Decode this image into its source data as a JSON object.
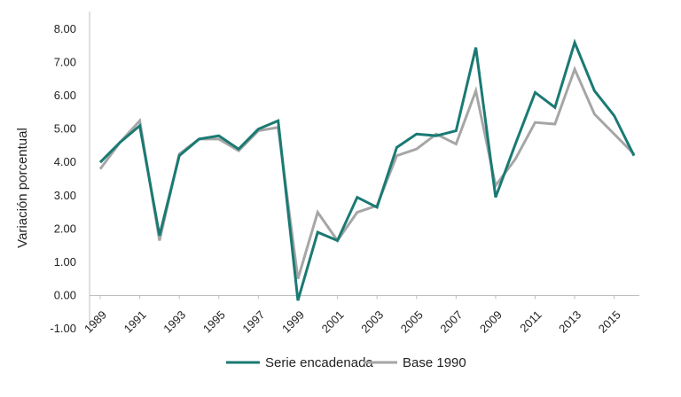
{
  "chart_data": {
    "type": "line",
    "ylabel": "Variación porcentual",
    "xlabel": "",
    "ylim": [
      -1.0,
      8.0
    ],
    "yticks": [
      "-1.00",
      "0.00",
      "1.00",
      "2.00",
      "3.00",
      "4.00",
      "5.00",
      "6.00",
      "7.00",
      "8.00"
    ],
    "xlim": [
      1989,
      2016
    ],
    "xticks": [
      "1989",
      "1991",
      "1993",
      "1995",
      "1997",
      "1999",
      "2001",
      "2003",
      "2005",
      "2007",
      "2009",
      "2011",
      "2013",
      "2015"
    ],
    "grid": false,
    "legend_position": "bottom",
    "x": [
      1989,
      1990,
      1991,
      1992,
      1993,
      1994,
      1995,
      1996,
      1997,
      1998,
      1999,
      2000,
      2001,
      2002,
      2003,
      2004,
      2005,
      2006,
      2007,
      2008,
      2009,
      2010,
      2011,
      2012,
      2013,
      2014,
      2015,
      2016
    ],
    "series": [
      {
        "name": "Serie encadenada",
        "color": "#1a7a73",
        "values": [
          4.0,
          4.6,
          5.1,
          1.8,
          4.2,
          4.7,
          4.8,
          4.4,
          5.0,
          5.25,
          -0.15,
          1.9,
          1.65,
          2.95,
          2.65,
          4.45,
          4.85,
          4.8,
          4.95,
          7.45,
          2.95,
          4.55,
          6.1,
          5.65,
          7.6,
          6.15,
          5.4,
          4.2
        ]
      },
      {
        "name": "Base 1990",
        "color": "#a6a6a6",
        "values": [
          3.8,
          4.6,
          5.25,
          1.65,
          4.25,
          4.7,
          4.7,
          4.35,
          4.95,
          5.05,
          0.5,
          2.5,
          1.65,
          2.5,
          2.7,
          4.2,
          4.4,
          4.85,
          4.55,
          6.15,
          3.3,
          4.1,
          5.2,
          5.15,
          6.8,
          5.45,
          4.85,
          4.25
        ]
      }
    ]
  }
}
